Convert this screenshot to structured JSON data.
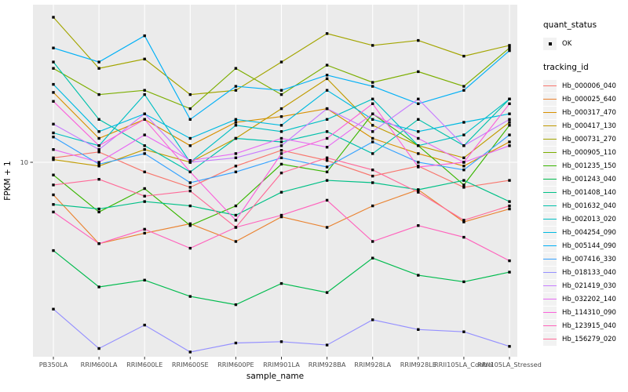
{
  "chart_data": {
    "type": "line",
    "title": "",
    "xlabel": "sample_name",
    "ylabel": "FPKM + 1",
    "y_scale": "log10",
    "y_ticks": [
      10
    ],
    "y_tick_labels": [
      "10"
    ],
    "ylim_log10": [
      0.07,
      1.75
    ],
    "grid": "ggplot-gray-panel-white-gridlines",
    "panel_bg": "#ebebeb",
    "grid_color": "#ffffff",
    "point_shape": "square",
    "point_color": "#000000",
    "axis_text_color": "#4d4d4d",
    "categories": [
      "PB350LA",
      "RRIM600LA",
      "RRIM600LE",
      "RRIM600SE",
      "RRIM600PE",
      "RRIM901LA",
      "RRIM928BA",
      "RRIM928LA",
      "RRIM928LE",
      "RRII105LA_Control",
      "RRII105LA_Stressed"
    ],
    "series": [
      {
        "name": "Hb_000006_040",
        "color": "#F8766D",
        "values": [
          10.5,
          11.2,
          9.0,
          7.6,
          9.6,
          11.4,
          10.2,
          8.6,
          9.6,
          7.6,
          8.2
        ]
      },
      {
        "name": "Hb_000025_640",
        "color": "#EA8331",
        "values": [
          7.0,
          4.1,
          4.6,
          5.1,
          4.2,
          5.5,
          4.9,
          6.2,
          7.4,
          5.2,
          6.0
        ]
      },
      {
        "name": "Hb_000317_470",
        "color": "#D89000",
        "values": [
          21.5,
          13.0,
          16.0,
          12.0,
          15.5,
          16.5,
          18.0,
          13.0,
          11.0,
          9.6,
          12.5
        ]
      },
      {
        "name": "Hb_000417_130",
        "color": "#C09B00",
        "values": [
          10.3,
          9.6,
          11.5,
          10.0,
          13.0,
          18.0,
          25.0,
          15.0,
          12.0,
          10.5,
          15.5
        ]
      },
      {
        "name": "Hb_000731_270",
        "color": "#A3A500",
        "values": [
          49.0,
          28.0,
          31.0,
          21.0,
          22.0,
          30.0,
          41.0,
          36.0,
          38.0,
          32.0,
          36.0
        ]
      },
      {
        "name": "Hb_000905_110",
        "color": "#7CAE00",
        "values": [
          28.0,
          21.0,
          22.0,
          18.0,
          28.0,
          21.0,
          29.0,
          24.0,
          27.0,
          23.0,
          35.0
        ]
      },
      {
        "name": "Hb_001235_150",
        "color": "#39B600",
        "values": [
          8.7,
          5.8,
          7.5,
          5.0,
          6.2,
          9.8,
          9.0,
          17.0,
          12.0,
          7.8,
          15.0
        ]
      },
      {
        "name": "Hb_001243_040",
        "color": "#00BB4E",
        "values": [
          3.8,
          2.55,
          2.75,
          2.3,
          2.1,
          2.65,
          2.4,
          3.5,
          2.9,
          2.7,
          3.0
        ]
      },
      {
        "name": "Hb_001408_140",
        "color": "#00C087",
        "values": [
          6.3,
          6.0,
          6.5,
          6.2,
          5.6,
          7.2,
          8.2,
          8.0,
          7.4,
          8.2,
          6.5
        ]
      },
      {
        "name": "Hb_001632_040",
        "color": "#00C1AB",
        "values": [
          30.0,
          16.0,
          12.0,
          9.0,
          13.0,
          12.5,
          14.0,
          11.0,
          16.0,
          12.0,
          20.0
        ]
      },
      {
        "name": "Hb_002013_020",
        "color": "#00BFC4",
        "values": [
          13.8,
          12.0,
          21.0,
          10.0,
          15.0,
          14.0,
          16.0,
          20.0,
          12.0,
          13.5,
          20.0
        ]
      },
      {
        "name": "Hb_004254_090",
        "color": "#00BAE0",
        "values": [
          23.5,
          14.0,
          17.0,
          13.0,
          16.0,
          15.0,
          22.0,
          16.0,
          14.0,
          15.5,
          17.0
        ]
      },
      {
        "name": "Hb_005144_090",
        "color": "#00B0F6",
        "values": [
          35.0,
          30.0,
          40.0,
          16.0,
          23.0,
          22.0,
          26.0,
          23.0,
          19.0,
          22.0,
          34.0
        ]
      },
      {
        "name": "Hb_007416_330",
        "color": "#35A2FF",
        "values": [
          13.2,
          9.8,
          11.0,
          8.0,
          9.0,
          10.5,
          9.5,
          12.5,
          10.0,
          9.2,
          13.5
        ]
      },
      {
        "name": "Hb_018133_040",
        "color": "#9590FF",
        "values": [
          2.0,
          1.3,
          1.68,
          1.25,
          1.38,
          1.4,
          1.35,
          1.78,
          1.6,
          1.56,
          1.33
        ]
      },
      {
        "name": "Hb_021419_030",
        "color": "#C77CFF",
        "values": [
          15.2,
          11.5,
          17.0,
          10.0,
          10.5,
          12.0,
          18.0,
          14.0,
          20.0,
          12.0,
          16.0
        ]
      },
      {
        "name": "Hb_032202_140",
        "color": "#E76BF3",
        "values": [
          11.5,
          10.0,
          13.5,
          10.2,
          11.0,
          13.0,
          11.8,
          17.0,
          13.0,
          10.0,
          12.0
        ]
      },
      {
        "name": "Hb_114310_090",
        "color": "#FA62DB",
        "values": [
          19.5,
          12.0,
          16.0,
          9.0,
          5.3,
          11.0,
          13.0,
          19.0,
          9.5,
          10.0,
          19.0
        ]
      },
      {
        "name": "Hb_123915_040",
        "color": "#FF62BC",
        "values": [
          5.8,
          4.1,
          4.8,
          3.9,
          4.9,
          5.6,
          6.6,
          4.2,
          5.0,
          4.4,
          3.4
        ]
      },
      {
        "name": "Hb_156279_020",
        "color": "#FF6A98",
        "values": [
          7.8,
          8.3,
          6.9,
          7.3,
          4.9,
          8.9,
          10.5,
          9.2,
          7.2,
          5.3,
          6.2
        ]
      }
    ],
    "legend_position": "right"
  },
  "legend": {
    "quant_status_title": "quant_status",
    "quant_status_items": [
      {
        "label": "OK"
      }
    ],
    "tracking_id_title": "tracking_id"
  }
}
